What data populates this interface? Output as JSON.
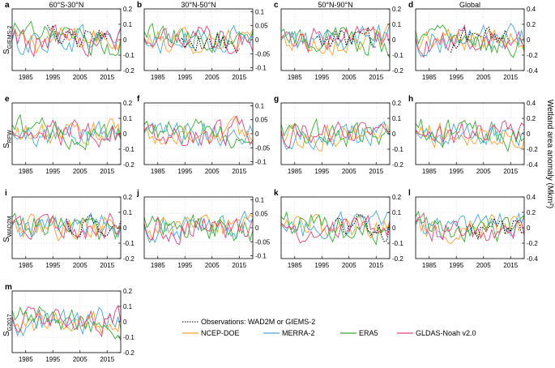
{
  "figure": {
    "col_titles": [
      "60°S-30°N",
      "30°N-50°N",
      "50°N-90°N",
      "Global"
    ],
    "row_labels": [
      {
        "main": "S",
        "sub": "GIEMS-2"
      },
      {
        "main": "S",
        "sub": "RFW"
      },
      {
        "main": "S",
        "sub": "WAD2M"
      },
      {
        "main": "S",
        "sub": "G2017"
      }
    ],
    "right_axis_label": "Wetland area anomaly (Mkm²)",
    "x_ticks": [
      1985,
      1995,
      2005,
      2015
    ],
    "colors": {
      "NCEP-DOE": "#f5a030",
      "MERRA-2": "#4aa8d8",
      "ERA5": "#3aaa35",
      "GLDAS-Noah v2.0": "#e0457b",
      "obs": "#000000",
      "grid": "#d0d0d0"
    },
    "legend": [
      {
        "key": "obs",
        "label": "Observations: WAD2M or GIEMS-2"
      },
      {
        "key": "NCEP-DOE",
        "label": "NCEP-DOE"
      },
      {
        "key": "MERRA-2",
        "label": "MERRA-2"
      },
      {
        "key": "ERA5",
        "label": "ERA5"
      },
      {
        "key": "GLDAS-Noah v2.0",
        "label": "GLDAS-Noah v2.0"
      }
    ]
  },
  "chart_data": [
    {
      "id": "a",
      "type": "line",
      "region": "60°S-30°N",
      "product": "GIEMS-2",
      "ylim": [
        -0.2,
        0.2
      ],
      "yticks": [
        -0.2,
        -0.1,
        0,
        0.1,
        0.2
      ],
      "ytick_labels": [
        "-0.2",
        "-0.1",
        "0",
        "0.1",
        "0.2"
      ],
      "obs": [
        1993,
        2015
      ]
    },
    {
      "id": "b",
      "type": "line",
      "region": "30°N-50°N",
      "product": "GIEMS-2",
      "ylim": [
        -0.11,
        0.11
      ],
      "yticks": [
        -0.1,
        -0.05,
        0,
        0.05,
        0.1
      ],
      "ytick_labels": [
        "-0.1",
        "-0.05",
        "0",
        "0.05",
        "0.1"
      ],
      "obs": [
        1993,
        2015
      ]
    },
    {
      "id": "c",
      "type": "line",
      "region": "50°N-90°N",
      "product": "GIEMS-2",
      "ylim": [
        -0.2,
        0.2
      ],
      "yticks": [
        -0.2,
        -0.1,
        0,
        0.1,
        0.2
      ],
      "ytick_labels": [
        "-0.2",
        "-0.1",
        "0",
        "0.1",
        "0.2"
      ],
      "obs": [
        1993,
        2015
      ]
    },
    {
      "id": "d",
      "type": "line",
      "region": "Global",
      "product": "GIEMS-2",
      "ylim": [
        -0.4,
        0.4
      ],
      "yticks": [
        -0.4,
        -0.2,
        0,
        0.2,
        0.4
      ],
      "ytick_labels": [
        "-0.4",
        "-0.2",
        "0",
        "0.2",
        "0.4"
      ],
      "obs": [
        1993,
        2015
      ]
    },
    {
      "id": "e",
      "type": "line",
      "region": "60°S-30°N",
      "product": "RFW",
      "ylim": [
        -0.2,
        0.2
      ],
      "yticks": [
        -0.2,
        -0.1,
        0,
        0.1,
        0.2
      ],
      "ytick_labels": [
        "-0.2",
        "-0.1",
        "0",
        "0.1",
        "0.2"
      ],
      "obs": null
    },
    {
      "id": "f",
      "type": "line",
      "region": "30°N-50°N",
      "product": "RFW",
      "ylim": [
        -0.11,
        0.11
      ],
      "yticks": [
        -0.1,
        -0.05,
        0,
        0.05,
        0.1
      ],
      "ytick_labels": [
        "-0.1",
        "-0.05",
        "0",
        "0.05",
        "0.1"
      ],
      "obs": null
    },
    {
      "id": "g",
      "type": "line",
      "region": "50°N-90°N",
      "product": "RFW",
      "ylim": [
        -0.2,
        0.2
      ],
      "yticks": [
        -0.2,
        -0.1,
        0,
        0.1,
        0.2
      ],
      "ytick_labels": [
        "-0.2",
        "-0.1",
        "0",
        "0.1",
        "0.2"
      ],
      "obs": null
    },
    {
      "id": "h",
      "type": "line",
      "region": "Global",
      "product": "RFW",
      "ylim": [
        -0.4,
        0.4
      ],
      "yticks": [
        -0.4,
        -0.2,
        0,
        0.2,
        0.4
      ],
      "ytick_labels": [
        "-0.4",
        "-0.2",
        "0",
        "0.2",
        "0.4"
      ],
      "obs": null
    },
    {
      "id": "i",
      "type": "line",
      "region": "60°S-30°N",
      "product": "WAD2M",
      "ylim": [
        -0.2,
        0.2
      ],
      "yticks": [
        -0.2,
        -0.1,
        0,
        0.1,
        0.2
      ],
      "ytick_labels": [
        "-0.2",
        "-0.1",
        "0",
        "0.1",
        "0.2"
      ],
      "obs": [
        2000,
        2020
      ]
    },
    {
      "id": "j",
      "type": "line",
      "region": "30°N-50°N",
      "product": "WAD2M",
      "ylim": [
        -0.11,
        0.11
      ],
      "yticks": [
        -0.1,
        -0.05,
        0,
        0.05,
        0.1
      ],
      "ytick_labels": [
        "-0.1",
        "-0.05",
        "0",
        "0.05",
        "0.1"
      ],
      "obs": null
    },
    {
      "id": "k",
      "type": "line",
      "region": "50°N-90°N",
      "product": "WAD2M",
      "ylim": [
        -0.2,
        0.2
      ],
      "yticks": [
        -0.2,
        -0.1,
        0,
        0.1,
        0.2
      ],
      "ytick_labels": [
        "-0.2",
        "-0.1",
        "0",
        "0.1",
        "0.2"
      ],
      "obs": [
        2000,
        2020
      ]
    },
    {
      "id": "l",
      "type": "line",
      "region": "Global",
      "product": "WAD2M",
      "ylim": [
        -0.4,
        0.4
      ],
      "yticks": [
        -0.4,
        -0.2,
        0,
        0.2,
        0.4
      ],
      "ytick_labels": [
        "-0.4",
        "-0.2",
        "0",
        "0.2",
        "0.4"
      ],
      "obs": [
        2000,
        2020
      ]
    },
    {
      "id": "m",
      "type": "line",
      "region": "60°S-30°N",
      "product": "G2017",
      "ylim": [
        -0.2,
        0.2
      ],
      "yticks": [
        -0.2,
        -0.1,
        0,
        0.1,
        0.2
      ],
      "ytick_labels": [
        "-0.2",
        "-0.1",
        "0",
        "0.1",
        "0.2"
      ],
      "obs": null
    }
  ]
}
